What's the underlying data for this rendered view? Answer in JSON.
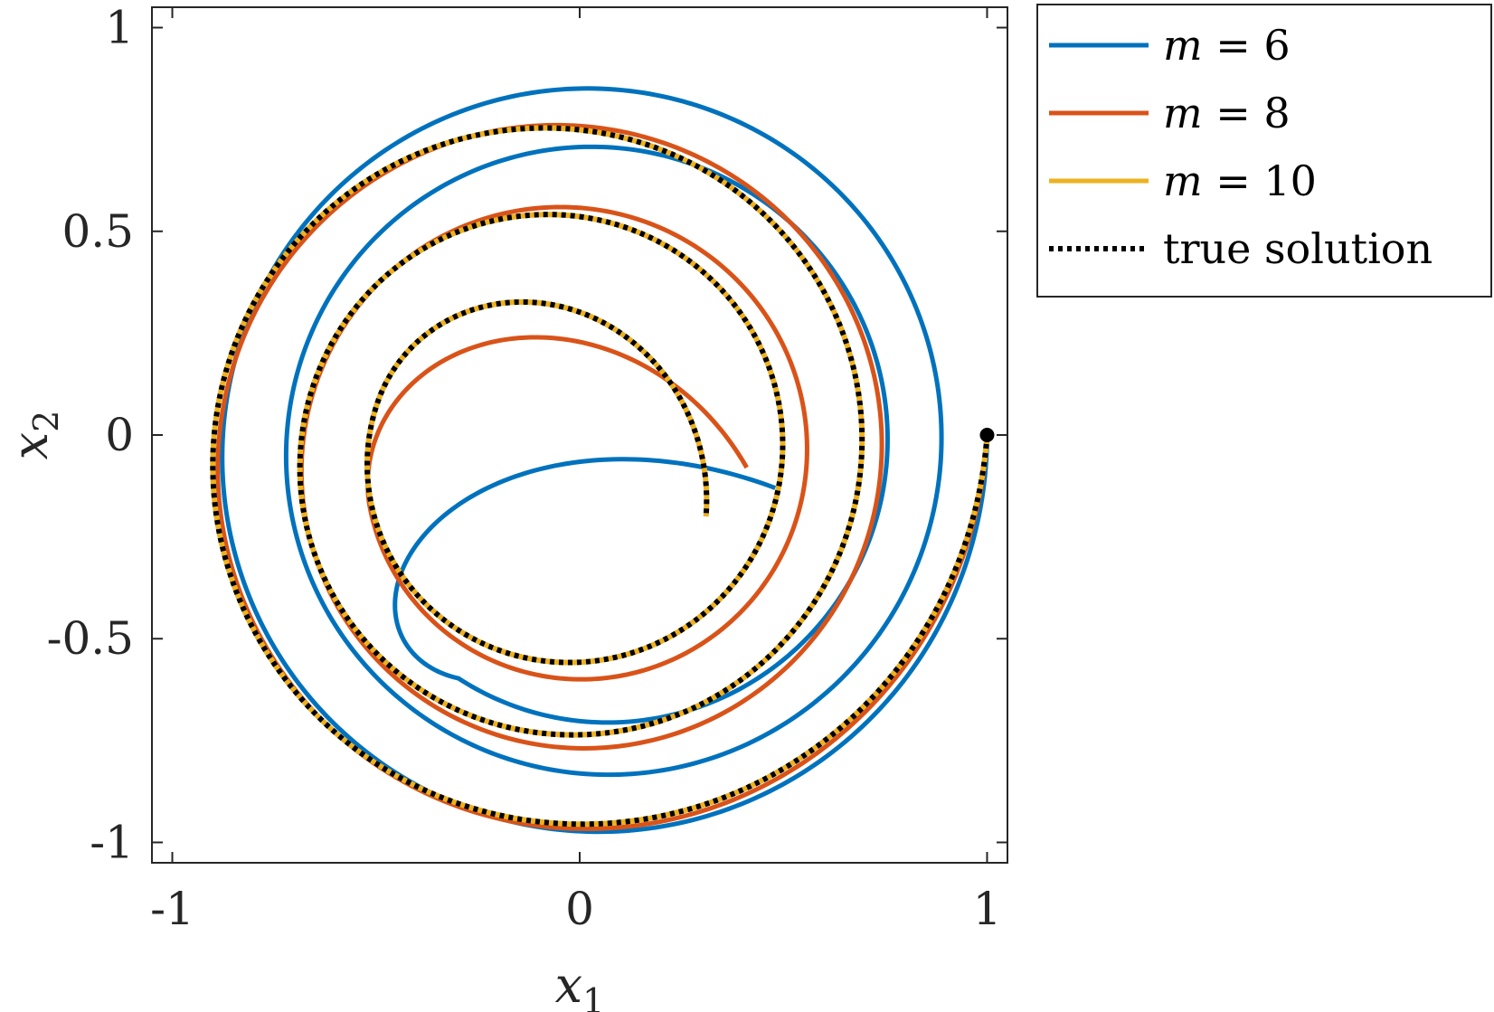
{
  "chart_data": {
    "type": "line",
    "title": "",
    "xlabel": "x",
    "xlabel_sub": "1",
    "ylabel": "x",
    "ylabel_sub": "2",
    "xlim": [
      -1.05,
      1.05
    ],
    "ylim": [
      -1.05,
      1.05
    ],
    "xticks": [
      -1,
      0,
      1
    ],
    "xtick_labels": [
      "-1",
      "0",
      "1"
    ],
    "yticks": [
      -1,
      -0.5,
      0,
      0.5,
      1
    ],
    "ytick_labels": [
      "-1",
      "-0.5",
      "0",
      "0.5",
      "1"
    ],
    "grid": false,
    "legend_position": "outside-top-right",
    "start_point": {
      "x": 1,
      "y": 0
    },
    "series": [
      {
        "name": "m = 6",
        "legend_var": "m",
        "legend_eq": "= 6",
        "color": "#0072BD",
        "style": "solid",
        "spiral": {
          "start_radius": 1.0,
          "start_angle_deg": 0,
          "turns": 2.75,
          "decay_per_turn": 0.84,
          "center_x": 0.05,
          "center_y": -0.03,
          "end": {
            "x": 0.48,
            "y": -0.13
          }
        }
      },
      {
        "name": "m = 8",
        "legend_var": "m",
        "legend_eq": "= 8",
        "color": "#D95319",
        "style": "solid",
        "spiral": {
          "start_radius": 1.0,
          "start_angle_deg": 0,
          "turns": 2.9,
          "decay_per_turn": 0.76,
          "center_x": -0.02,
          "center_y": -0.06,
          "end": {
            "x": 0.41,
            "y": -0.08
          }
        }
      },
      {
        "name": "m = 10",
        "legend_var": "m",
        "legend_eq": "= 10",
        "color": "#EDB120",
        "style": "solid",
        "spiral": {
          "start_radius": 1.0,
          "start_angle_deg": 0,
          "turns": 3.0,
          "decay_per_turn": 0.74,
          "center_x": -0.05,
          "center_y": -0.05,
          "end": {
            "x": 0.31,
            "y": -0.2
          }
        }
      },
      {
        "name": "true solution",
        "legend_var": "",
        "legend_eq": "true solution",
        "color": "#000000",
        "style": "dotted",
        "spiral": {
          "start_radius": 1.0,
          "start_angle_deg": 0,
          "turns": 3.0,
          "decay_per_turn": 0.74,
          "center_x": -0.05,
          "center_y": -0.05,
          "end": {
            "x": 0.31,
            "y": -0.2
          }
        }
      }
    ]
  }
}
